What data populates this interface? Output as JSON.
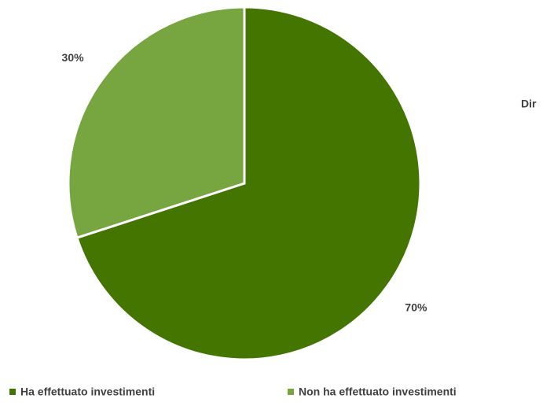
{
  "chart_data": {
    "type": "pie",
    "categories": [
      "Ha effettuato investimenti",
      "Non ha effettuato investimenti"
    ],
    "values": [
      70,
      30
    ],
    "value_labels": [
      "70%",
      "30%"
    ],
    "colors": [
      "#437500",
      "#77a640"
    ],
    "annotation": "Dir",
    "legend": "bottom"
  }
}
